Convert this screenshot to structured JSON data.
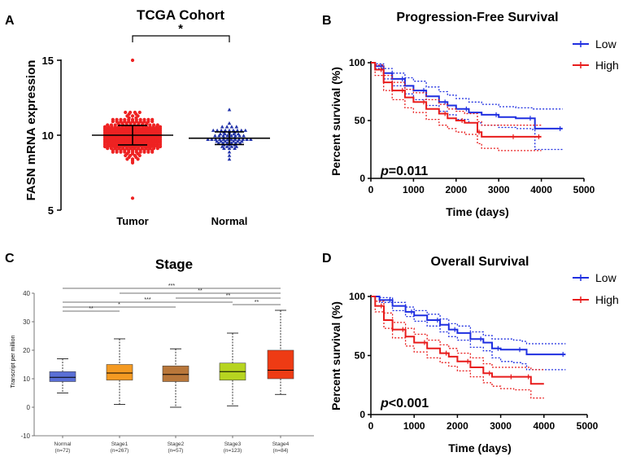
{
  "colors": {
    "tumor": "#ee2222",
    "normal": "#2233aa",
    "low": "#1f2fe0",
    "high": "#e81c1c",
    "axis": "#000000",
    "grid": "#555555"
  },
  "panels": {
    "A": "A",
    "B": "B",
    "C": "C",
    "D": "D"
  },
  "chart_data": [
    {
      "id": "A",
      "type": "scatter",
      "title": "TCGA Cohort",
      "ylabel": "FASN mRNA expression",
      "ylim": [
        5,
        15.5
      ],
      "yticks": [
        "5",
        "10",
        "15"
      ],
      "categories": [
        "Tumor",
        "Normal"
      ],
      "significance": "*",
      "series": [
        {
          "name": "Tumor",
          "marker": "circle",
          "n": 380,
          "mean": 10.0,
          "sd": 0.65,
          "min": 5.8,
          "max": 15.0
        },
        {
          "name": "Normal",
          "marker": "triangle",
          "n": 72,
          "mean": 9.8,
          "sd": 0.42,
          "min": 8.4,
          "max": 11.7
        }
      ]
    },
    {
      "id": "B",
      "type": "line",
      "title": "Progression-Free Survival",
      "xlabel": "Time (days)",
      "ylabel": "Percent survival (%)",
      "xlim": [
        0,
        5000
      ],
      "ylim": [
        0,
        100
      ],
      "xticks": [
        "0",
        "1000",
        "2000",
        "3000",
        "4000",
        "5000"
      ],
      "yticks": [
        "0",
        "50",
        "100"
      ],
      "pvalue_prefix": "p",
      "pvalue_suffix": "=0.011",
      "legend": [
        "Low",
        "High"
      ],
      "series": [
        {
          "name": "Low",
          "x": [
            0,
            100,
            300,
            500,
            800,
            1000,
            1300,
            1600,
            1800,
            2000,
            2300,
            2600,
            3000,
            3400,
            3800,
            3850,
            4500
          ],
          "y": [
            100,
            97,
            91,
            86,
            80,
            76,
            71,
            66,
            63,
            60,
            57,
            55,
            53,
            52,
            52,
            43,
            43
          ],
          "ci_upper": [
            100,
            99,
            95,
            91,
            87,
            84,
            79,
            75,
            72,
            69,
            66,
            64,
            62,
            61,
            60,
            60,
            60
          ],
          "ci_lower": [
            100,
            95,
            86,
            80,
            73,
            68,
            63,
            58,
            55,
            51,
            48,
            46,
            44,
            43,
            42,
            25,
            25
          ]
        },
        {
          "name": "High",
          "x": [
            0,
            100,
            300,
            500,
            800,
            1000,
            1300,
            1600,
            1800,
            2000,
            2200,
            2500,
            2600,
            3000,
            3400,
            3700,
            4000
          ],
          "y": [
            100,
            94,
            83,
            76,
            70,
            66,
            60,
            56,
            52,
            50,
            48,
            40,
            36,
            36,
            36,
            36,
            36
          ],
          "ci_upper": [
            100,
            98,
            89,
            83,
            77,
            74,
            68,
            64,
            60,
            58,
            56,
            49,
            46,
            46,
            46,
            46,
            46
          ],
          "ci_lower": [
            100,
            89,
            76,
            68,
            61,
            57,
            51,
            46,
            43,
            40,
            38,
            30,
            26,
            24,
            24,
            24,
            24
          ]
        }
      ]
    },
    {
      "id": "C",
      "type": "boxplot",
      "title": "Stage",
      "ylabel": "Transcript per million",
      "ylim": [
        -10,
        40
      ],
      "yticks": [
        "-10",
        "0",
        "10",
        "20",
        "30",
        "40"
      ],
      "categories": [
        "Normal",
        "Stage1",
        "Stage2",
        "Stage3",
        "Stage4"
      ],
      "counts": [
        "(n=72)",
        "(n=267)",
        "(n=57)",
        "(n=123)",
        "(n=84)"
      ],
      "box_colors": [
        "#5a6fd6",
        "#f49a22",
        "#b9773a",
        "#b6d420",
        "#ee3b14"
      ],
      "boxes": [
        {
          "min": 5,
          "q1": 9,
          "median": 10.5,
          "q3": 12.5,
          "max": 17
        },
        {
          "min": 1,
          "q1": 9.5,
          "median": 12,
          "q3": 15,
          "max": 24
        },
        {
          "min": 0,
          "q1": 9,
          "median": 11.5,
          "q3": 14.5,
          "max": 20.5
        },
        {
          "min": 0.5,
          "q1": 9.5,
          "median": 12.5,
          "q3": 15.5,
          "max": 26
        },
        {
          "min": 4.5,
          "q1": 10,
          "median": 13,
          "q3": 20,
          "max": 34
        }
      ],
      "comparisons": [
        {
          "from": 0,
          "to": 4,
          "label": "***"
        },
        {
          "from": 1,
          "to": 4,
          "label": "**"
        },
        {
          "from": 2,
          "to": 4,
          "label": "**"
        },
        {
          "from": 0,
          "to": 3,
          "label": "***"
        },
        {
          "from": 3,
          "to": 4,
          "label": "**"
        },
        {
          "from": 0,
          "to": 2,
          "label": "*"
        },
        {
          "from": 0,
          "to": 1,
          "label": "**"
        }
      ]
    },
    {
      "id": "D",
      "type": "line",
      "title": "Overall Survival",
      "xlabel": "Time (days)",
      "ylabel": "Percent survival (%)",
      "xlim": [
        0,
        5000
      ],
      "ylim": [
        0,
        100
      ],
      "xticks": [
        "0",
        "1000",
        "2000",
        "3000",
        "4000",
        "5000"
      ],
      "yticks": [
        "0",
        "50",
        "100"
      ],
      "pvalue_prefix": "p",
      "pvalue_suffix": "<0.001",
      "legend": [
        "Low",
        "High"
      ],
      "series": [
        {
          "name": "Low",
          "x": [
            0,
            200,
            500,
            800,
            1000,
            1300,
            1600,
            1800,
            2000,
            2300,
            2600,
            2800,
            3000,
            3300,
            3500,
            3600,
            4500
          ],
          "y": [
            100,
            97,
            92,
            87,
            84,
            80,
            76,
            72,
            69,
            64,
            61,
            56,
            55,
            55,
            55,
            51,
            51
          ],
          "ci_upper": [
            100,
            99,
            95,
            91,
            88,
            85,
            81,
            77,
            75,
            70,
            67,
            64,
            64,
            63,
            62,
            60,
            60
          ],
          "ci_lower": [
            100,
            95,
            88,
            83,
            79,
            75,
            70,
            66,
            63,
            57,
            54,
            48,
            45,
            44,
            43,
            38,
            38
          ]
        },
        {
          "name": "High",
          "x": [
            0,
            100,
            300,
            500,
            800,
            1000,
            1300,
            1600,
            1800,
            2000,
            2300,
            2600,
            2800,
            3000,
            3300,
            3600,
            3700,
            4000
          ],
          "y": [
            100,
            92,
            80,
            72,
            66,
            61,
            56,
            52,
            49,
            45,
            40,
            35,
            32,
            32,
            32,
            32,
            26,
            26
          ],
          "ci_upper": [
            100,
            96,
            86,
            78,
            73,
            68,
            63,
            59,
            56,
            52,
            48,
            43,
            40,
            40,
            40,
            40,
            38,
            38
          ],
          "ci_lower": [
            100,
            87,
            73,
            65,
            58,
            53,
            48,
            44,
            41,
            37,
            32,
            27,
            24,
            22,
            21,
            21,
            14,
            14
          ]
        }
      ]
    }
  ]
}
